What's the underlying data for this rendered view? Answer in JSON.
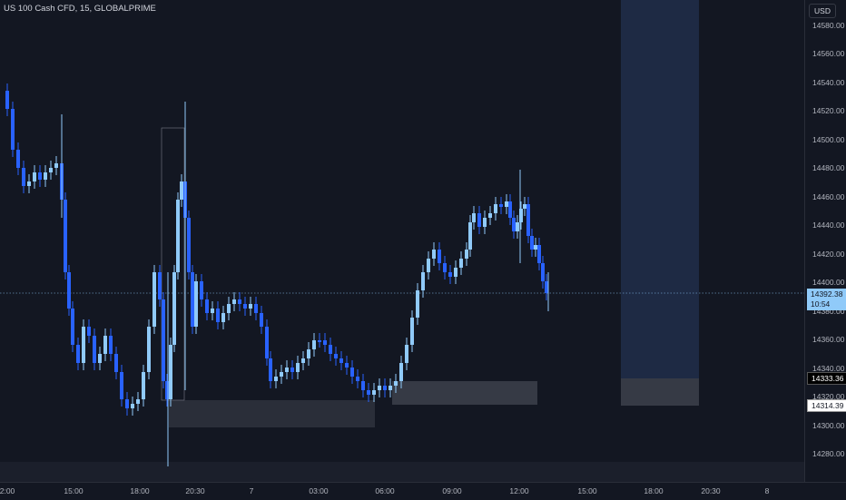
{
  "header": {
    "symbol": "US 100 Cash CFD, 15, GLOBALPRIME"
  },
  "price_axis": {
    "currency": "USD",
    "ticks": [
      "14580.00",
      "14560.00",
      "14540.00",
      "14520.00",
      "14500.00",
      "14480.00",
      "14460.00",
      "14440.00",
      "14420.00",
      "14400.00",
      "14380.00",
      "14360.00",
      "14340.00",
      "14320.00",
      "14300.00",
      "14280.00"
    ],
    "current_price": "14392.38",
    "countdown": "10:54",
    "tag_upper": "14333.36",
    "tag_lower": "14314.39"
  },
  "time_axis": {
    "labels": [
      "2:00",
      "15:00",
      "18:00",
      "20:30",
      "7",
      "03:00",
      "06:00",
      "09:00",
      "12:00",
      "15:00",
      "18:00",
      "20:30",
      "8"
    ]
  },
  "colors": {
    "background": "#131722",
    "bull": "#90caf9",
    "bear": "#2962ff",
    "zone": "#363a45",
    "projection": "#1e2a44"
  },
  "chart_data": {
    "type": "candlestick",
    "symbol": "US 100 Cash CFD",
    "interval": "15",
    "ylim": [
      14268,
      14600
    ],
    "current_price": 14392.38
  }
}
